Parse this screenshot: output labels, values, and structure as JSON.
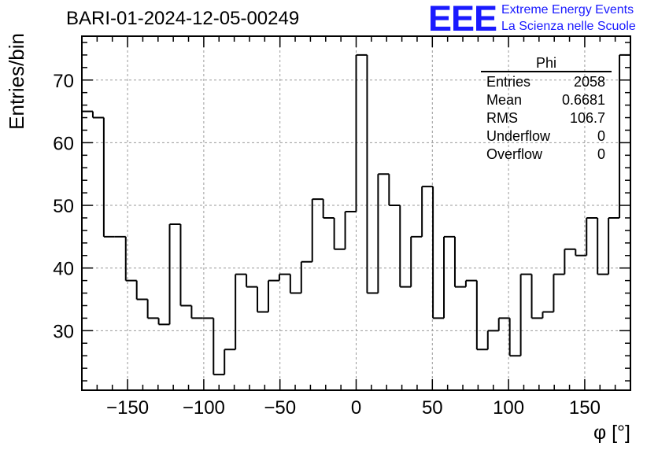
{
  "logo": {
    "mark": "EEE",
    "line1": "Extreme Energy Events",
    "line2": "La Scienza nelle Scuole",
    "color": "#1a1aff"
  },
  "chart_data": {
    "type": "histogram",
    "title": "BARI-01-2024-12-05-00249",
    "xlabel": "φ [°]",
    "ylabel": "Entries/bin",
    "xlim": [
      -180,
      180
    ],
    "ylim": [
      20.5,
      77
    ],
    "xticks": [
      -150,
      -100,
      -50,
      0,
      50,
      100,
      150
    ],
    "yticks": [
      30,
      40,
      50,
      60,
      70
    ],
    "grid": true,
    "bin_width": 7.2,
    "bin_edges_start": -180,
    "values": [
      65,
      64,
      45,
      45,
      38,
      35,
      32,
      31,
      47,
      34,
      32,
      32,
      23,
      27,
      39,
      37,
      33,
      38,
      39,
      36,
      41,
      51,
      48,
      43,
      49,
      74,
      36,
      55,
      50,
      37,
      45,
      53,
      32,
      45,
      37,
      38,
      27,
      30,
      32,
      26,
      39,
      32,
      33,
      39,
      43,
      42,
      48,
      39,
      48,
      74
    ],
    "line_color": "#000000",
    "stats_box": {
      "name": "Phi",
      "rows": [
        {
          "label": "Entries",
          "value": "2058"
        },
        {
          "label": "Mean",
          "value": "0.6681"
        },
        {
          "label": "RMS",
          "value": "106.7"
        },
        {
          "label": "Underflow",
          "value": "0"
        },
        {
          "label": "Overflow",
          "value": "0"
        }
      ]
    }
  }
}
